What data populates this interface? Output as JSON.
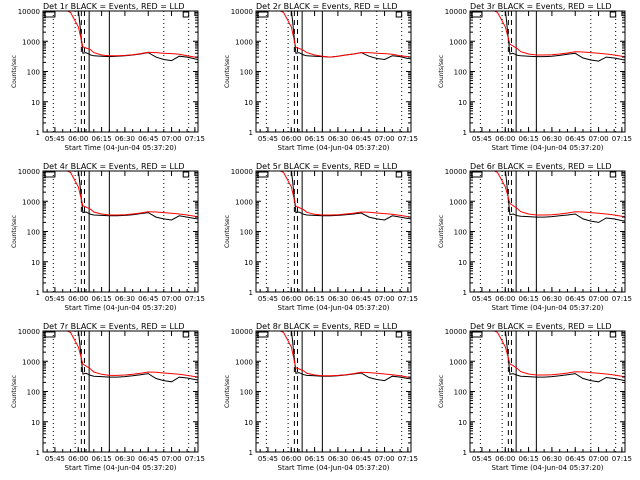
{
  "page": {
    "background": "#ffffff",
    "black_color": "#000000",
    "red_color": "#ff0000"
  },
  "chart_data": [
    {
      "type": "line",
      "title": "Det 1r BLACK = Events, RED = LLD",
      "ylabel": "Counts/sec",
      "xlabel": "Start Time (04-Jun-04 05:37:20)",
      "y_scale": "log",
      "ylim": [
        1,
        10000
      ],
      "y_ticks": [
        "1",
        "10",
        "100",
        "1000",
        "10000"
      ],
      "x_ticks": [
        "05:45",
        "06:00",
        "06:15",
        "06:30",
        "06:45",
        "07:00",
        "07:15"
      ],
      "x": [
        "05:37",
        "05:38",
        "05:40",
        "05:42",
        "05:45",
        "05:50",
        "05:55",
        "06:00",
        "06:03",
        "06:05",
        "06:08",
        "06:10",
        "06:15",
        "06:20",
        "06:25",
        "06:30",
        "06:35",
        "06:40",
        "06:45",
        "06:50",
        "06:55",
        "07:00",
        "07:05",
        "07:10",
        "07:15",
        "07:17"
      ],
      "series": [
        {
          "name": "BLACK = Events",
          "color": "#000000",
          "values": [
            8000,
            12000,
            12000,
            12000,
            12000,
            12000,
            12000,
            12000,
            400,
            420,
            350,
            330,
            320,
            310,
            320,
            330,
            350,
            380,
            420,
            300,
            250,
            230,
            320,
            300,
            260,
            250
          ]
        },
        {
          "name": "RED = LLD",
          "color": "#ff0000",
          "values": [
            9000,
            12000,
            12000,
            12000,
            12000,
            12000,
            9000,
            3000,
            650,
            600,
            520,
            420,
            350,
            330,
            330,
            340,
            360,
            390,
            430,
            420,
            400,
            390,
            370,
            330,
            300,
            290
          ]
        }
      ]
    },
    {
      "type": "line",
      "title": "Det 2r BLACK = Events, RED = LLD",
      "ylabel": "Counts/sec",
      "xlabel": "Start Time (04-Jun-04 05:37:20)",
      "y_scale": "log",
      "ylim": [
        1,
        10000
      ],
      "y_ticks": [
        "1",
        "10",
        "100",
        "1000",
        "10000"
      ],
      "x_ticks": [
        "05:45",
        "06:00",
        "06:15",
        "06:30",
        "06:45",
        "07:00",
        "07:15"
      ],
      "x": [
        "05:37",
        "05:38",
        "05:40",
        "05:42",
        "05:45",
        "05:50",
        "05:55",
        "06:00",
        "06:03",
        "06:05",
        "06:08",
        "06:10",
        "06:15",
        "06:20",
        "06:25",
        "06:30",
        "06:35",
        "06:40",
        "06:45",
        "06:50",
        "06:55",
        "07:00",
        "07:05",
        "07:10",
        "07:15",
        "07:17"
      ],
      "series": [
        {
          "name": "BLACK = Events",
          "color": "#000000",
          "values": [
            8000,
            12000,
            12000,
            12000,
            12000,
            12000,
            12000,
            12000,
            400,
            420,
            350,
            330,
            320,
            310,
            300,
            320,
            350,
            380,
            420,
            320,
            270,
            250,
            330,
            310,
            270,
            260
          ]
        },
        {
          "name": "RED = LLD",
          "color": "#ff0000",
          "values": [
            9000,
            12000,
            12000,
            12000,
            12000,
            12000,
            9000,
            3000,
            620,
            580,
            500,
            420,
            350,
            320,
            300,
            320,
            350,
            380,
            420,
            420,
            400,
            390,
            370,
            330,
            310,
            300
          ]
        }
      ]
    },
    {
      "type": "line",
      "title": "Det 3r BLACK = Events, RED = LLD",
      "ylabel": "Counts/sec",
      "xlabel": "Start Time (04-Jun-04 05:37:20)",
      "y_scale": "log",
      "ylim": [
        1,
        10000
      ],
      "y_ticks": [
        "1",
        "10",
        "100",
        "1000",
        "10000"
      ],
      "x_ticks": [
        "05:45",
        "06:00",
        "06:15",
        "06:30",
        "06:45",
        "07:00",
        "07:15"
      ],
      "x": [
        "05:37",
        "05:38",
        "05:40",
        "05:42",
        "05:45",
        "05:50",
        "05:55",
        "06:00",
        "06:03",
        "06:05",
        "06:08",
        "06:10",
        "06:15",
        "06:20",
        "06:25",
        "06:30",
        "06:35",
        "06:40",
        "06:45",
        "06:50",
        "06:55",
        "07:00",
        "07:05",
        "07:10",
        "07:15",
        "07:17"
      ],
      "series": [
        {
          "name": "BLACK = Events",
          "color": "#000000",
          "values": [
            8000,
            12000,
            12000,
            12000,
            12000,
            12000,
            12000,
            12000,
            380,
            400,
            340,
            330,
            320,
            310,
            310,
            320,
            340,
            370,
            400,
            280,
            240,
            220,
            300,
            280,
            250,
            240
          ]
        },
        {
          "name": "RED = LLD",
          "color": "#ff0000",
          "values": [
            9000,
            12000,
            12000,
            12000,
            12000,
            12000,
            9000,
            3000,
            800,
            700,
            560,
            450,
            380,
            350,
            350,
            360,
            380,
            410,
            450,
            440,
            420,
            400,
            380,
            350,
            320,
            310
          ]
        }
      ]
    },
    {
      "type": "line",
      "title": "Det 4r BLACK = Events, RED = LLD",
      "ylabel": "Counts/sec",
      "xlabel": "Start Time (04-Jun-04 05:37:20)",
      "y_scale": "log",
      "ylim": [
        1,
        10000
      ],
      "y_ticks": [
        "1",
        "10",
        "100",
        "1000",
        "10000"
      ],
      "x_ticks": [
        "05:45",
        "06:00",
        "06:15",
        "06:30",
        "06:45",
        "07:00",
        "07:15"
      ],
      "x": [
        "05:37",
        "05:38",
        "05:40",
        "05:42",
        "05:45",
        "05:50",
        "05:55",
        "06:00",
        "06:03",
        "06:05",
        "06:08",
        "06:10",
        "06:15",
        "06:20",
        "06:25",
        "06:30",
        "06:35",
        "06:40",
        "06:45",
        "06:50",
        "06:55",
        "07:00",
        "07:05",
        "07:10",
        "07:15",
        "07:17"
      ],
      "series": [
        {
          "name": "BLACK = Events",
          "color": "#000000",
          "values": [
            8000,
            12000,
            12000,
            12000,
            12000,
            12000,
            12000,
            12000,
            420,
            440,
            370,
            350,
            340,
            330,
            330,
            340,
            360,
            390,
            420,
            300,
            260,
            240,
            330,
            300,
            270,
            260
          ]
        },
        {
          "name": "RED = LLD",
          "color": "#ff0000",
          "values": [
            9000,
            12000,
            12000,
            12000,
            12000,
            12000,
            9000,
            3000,
            700,
            640,
            540,
            440,
            380,
            350,
            350,
            360,
            380,
            410,
            450,
            440,
            420,
            400,
            380,
            350,
            320,
            310
          ]
        }
      ]
    },
    {
      "type": "line",
      "title": "Det 5r BLACK = Events, RED = LLD",
      "ylabel": "Counts/sec",
      "xlabel": "Start Time (04-Jun-04 05:37:20)",
      "y_scale": "log",
      "ylim": [
        1,
        10000
      ],
      "y_ticks": [
        "1",
        "10",
        "100",
        "1000",
        "10000"
      ],
      "x_ticks": [
        "05:45",
        "06:00",
        "06:15",
        "06:30",
        "06:45",
        "07:00",
        "07:15"
      ],
      "x": [
        "05:37",
        "05:38",
        "05:40",
        "05:42",
        "05:45",
        "05:50",
        "05:55",
        "06:00",
        "06:03",
        "06:05",
        "06:08",
        "06:10",
        "06:15",
        "06:20",
        "06:25",
        "06:30",
        "06:35",
        "06:40",
        "06:45",
        "06:50",
        "06:55",
        "07:00",
        "07:05",
        "07:10",
        "07:15",
        "07:17"
      ],
      "series": [
        {
          "name": "BLACK = Events",
          "color": "#000000",
          "values": [
            8000,
            12000,
            12000,
            12000,
            12000,
            12000,
            12000,
            12000,
            420,
            440,
            370,
            350,
            340,
            330,
            330,
            340,
            360,
            380,
            410,
            300,
            260,
            240,
            330,
            300,
            270,
            260
          ]
        },
        {
          "name": "RED = LLD",
          "color": "#ff0000",
          "values": [
            9000,
            12000,
            12000,
            12000,
            12000,
            12000,
            9000,
            3000,
            680,
            620,
            520,
            430,
            370,
            350,
            350,
            360,
            380,
            400,
            440,
            430,
            410,
            390,
            370,
            340,
            310,
            300
          ]
        }
      ]
    },
    {
      "type": "line",
      "title": "Det 6r BLACK = Events, RED = LLD",
      "ylabel": "Counts/sec",
      "xlabel": "Start Time (04-Jun-04 05:37:20)",
      "y_scale": "log",
      "ylim": [
        1,
        10000
      ],
      "y_ticks": [
        "1",
        "10",
        "100",
        "1000",
        "10000"
      ],
      "x_ticks": [
        "05:45",
        "06:00",
        "06:15",
        "06:30",
        "06:45",
        "07:00",
        "07:15"
      ],
      "x": [
        "05:37",
        "05:38",
        "05:40",
        "05:42",
        "05:45",
        "05:50",
        "05:55",
        "06:00",
        "06:03",
        "06:05",
        "06:08",
        "06:10",
        "06:15",
        "06:20",
        "06:25",
        "06:30",
        "06:35",
        "06:40",
        "06:45",
        "06:50",
        "06:55",
        "07:00",
        "07:05",
        "07:10",
        "07:15",
        "07:17"
      ],
      "series": [
        {
          "name": "BLACK = Events",
          "color": "#000000",
          "values": [
            8000,
            12000,
            12000,
            12000,
            12000,
            12000,
            12000,
            12000,
            360,
            380,
            330,
            320,
            310,
            300,
            300,
            310,
            330,
            350,
            380,
            260,
            220,
            200,
            280,
            260,
            230,
            220
          ]
        },
        {
          "name": "RED = LLD",
          "color": "#ff0000",
          "values": [
            9000,
            12000,
            12000,
            12000,
            12000,
            12000,
            9000,
            3000,
            850,
            720,
            560,
            450,
            380,
            350,
            350,
            360,
            380,
            410,
            450,
            440,
            420,
            400,
            380,
            350,
            320,
            310
          ]
        }
      ]
    },
    {
      "type": "line",
      "title": "Det 7r BLACK = Events, RED = LLD",
      "ylabel": "Counts/sec",
      "xlabel": "Start Time (04-Jun-04 05:37:20)",
      "y_scale": "log",
      "ylim": [
        1,
        10000
      ],
      "y_ticks": [
        "1",
        "10",
        "100",
        "1000",
        "10000"
      ],
      "x_ticks": [
        "05:45",
        "06:00",
        "06:15",
        "06:30",
        "06:45",
        "07:00",
        "07:15"
      ],
      "x": [
        "05:37",
        "05:38",
        "05:40",
        "05:42",
        "05:45",
        "05:50",
        "05:55",
        "06:00",
        "06:03",
        "06:05",
        "06:08",
        "06:10",
        "06:15",
        "06:20",
        "06:25",
        "06:30",
        "06:35",
        "06:40",
        "06:45",
        "06:50",
        "06:55",
        "07:00",
        "07:05",
        "07:10",
        "07:15",
        "07:17"
      ],
      "series": [
        {
          "name": "BLACK = Events",
          "color": "#000000",
          "values": [
            8000,
            12000,
            12000,
            12000,
            12000,
            12000,
            12000,
            12000,
            380,
            400,
            340,
            320,
            310,
            300,
            300,
            310,
            330,
            360,
            390,
            270,
            230,
            210,
            300,
            280,
            250,
            240
          ]
        },
        {
          "name": "RED = LLD",
          "color": "#ff0000",
          "values": [
            9000,
            12000,
            12000,
            12000,
            12000,
            12000,
            9000,
            3000,
            800,
            700,
            550,
            440,
            370,
            340,
            340,
            350,
            370,
            400,
            440,
            430,
            410,
            390,
            370,
            340,
            310,
            300
          ]
        }
      ]
    },
    {
      "type": "line",
      "title": "Det 8r BLACK = Events, RED = LLD",
      "ylabel": "Counts/sec",
      "xlabel": "Start Time (04-Jun-04 05:37:20)",
      "y_scale": "log",
      "ylim": [
        1,
        10000
      ],
      "y_ticks": [
        "1",
        "10",
        "100",
        "1000",
        "10000"
      ],
      "x_ticks": [
        "05:45",
        "06:00",
        "06:15",
        "06:30",
        "06:45",
        "07:00",
        "07:15"
      ],
      "x": [
        "05:37",
        "05:38",
        "05:40",
        "05:42",
        "05:45",
        "05:50",
        "05:55",
        "06:00",
        "06:03",
        "06:05",
        "06:08",
        "06:10",
        "06:15",
        "06:20",
        "06:25",
        "06:30",
        "06:35",
        "06:40",
        "06:45",
        "06:50",
        "06:55",
        "07:00",
        "07:05",
        "07:10",
        "07:15",
        "07:17"
      ],
      "series": [
        {
          "name": "BLACK = Events",
          "color": "#000000",
          "values": [
            8000,
            12000,
            12000,
            12000,
            12000,
            12000,
            12000,
            12000,
            400,
            420,
            360,
            340,
            330,
            320,
            320,
            330,
            350,
            380,
            410,
            290,
            250,
            230,
            320,
            300,
            270,
            260
          ]
        },
        {
          "name": "RED = LLD",
          "color": "#ff0000",
          "values": [
            9000,
            12000,
            12000,
            12000,
            12000,
            12000,
            9000,
            3000,
            600,
            560,
            480,
            400,
            350,
            330,
            330,
            340,
            360,
            390,
            430,
            420,
            400,
            380,
            360,
            330,
            300,
            290
          ]
        }
      ]
    },
    {
      "type": "line",
      "title": "Det 9r BLACK = Events, RED = LLD",
      "ylabel": "Counts/sec",
      "xlabel": "Start Time (04-Jun-04 05:37:20)",
      "y_scale": "log",
      "ylim": [
        1,
        10000
      ],
      "y_ticks": [
        "1",
        "10",
        "100",
        "1000",
        "10000"
      ],
      "x_ticks": [
        "05:45",
        "06:00",
        "06:15",
        "06:30",
        "06:45",
        "07:00",
        "07:15"
      ],
      "x": [
        "05:37",
        "05:38",
        "05:40",
        "05:42",
        "05:45",
        "05:50",
        "05:55",
        "06:00",
        "06:03",
        "06:05",
        "06:08",
        "06:10",
        "06:15",
        "06:20",
        "06:25",
        "06:30",
        "06:35",
        "06:40",
        "06:45",
        "06:50",
        "06:55",
        "07:00",
        "07:05",
        "07:10",
        "07:15",
        "07:17"
      ],
      "series": [
        {
          "name": "BLACK = Events",
          "color": "#000000",
          "values": [
            8000,
            12000,
            12000,
            12000,
            12000,
            12000,
            12000,
            12000,
            370,
            390,
            340,
            320,
            310,
            300,
            300,
            310,
            330,
            360,
            390,
            270,
            230,
            210,
            290,
            270,
            240,
            230
          ]
        },
        {
          "name": "RED = LLD",
          "color": "#ff0000",
          "values": [
            9000,
            12000,
            12000,
            12000,
            12000,
            12000,
            9000,
            3000,
            820,
            720,
            560,
            450,
            380,
            350,
            350,
            360,
            380,
            410,
            450,
            440,
            420,
            400,
            380,
            350,
            320,
            310
          ]
        }
      ]
    }
  ]
}
